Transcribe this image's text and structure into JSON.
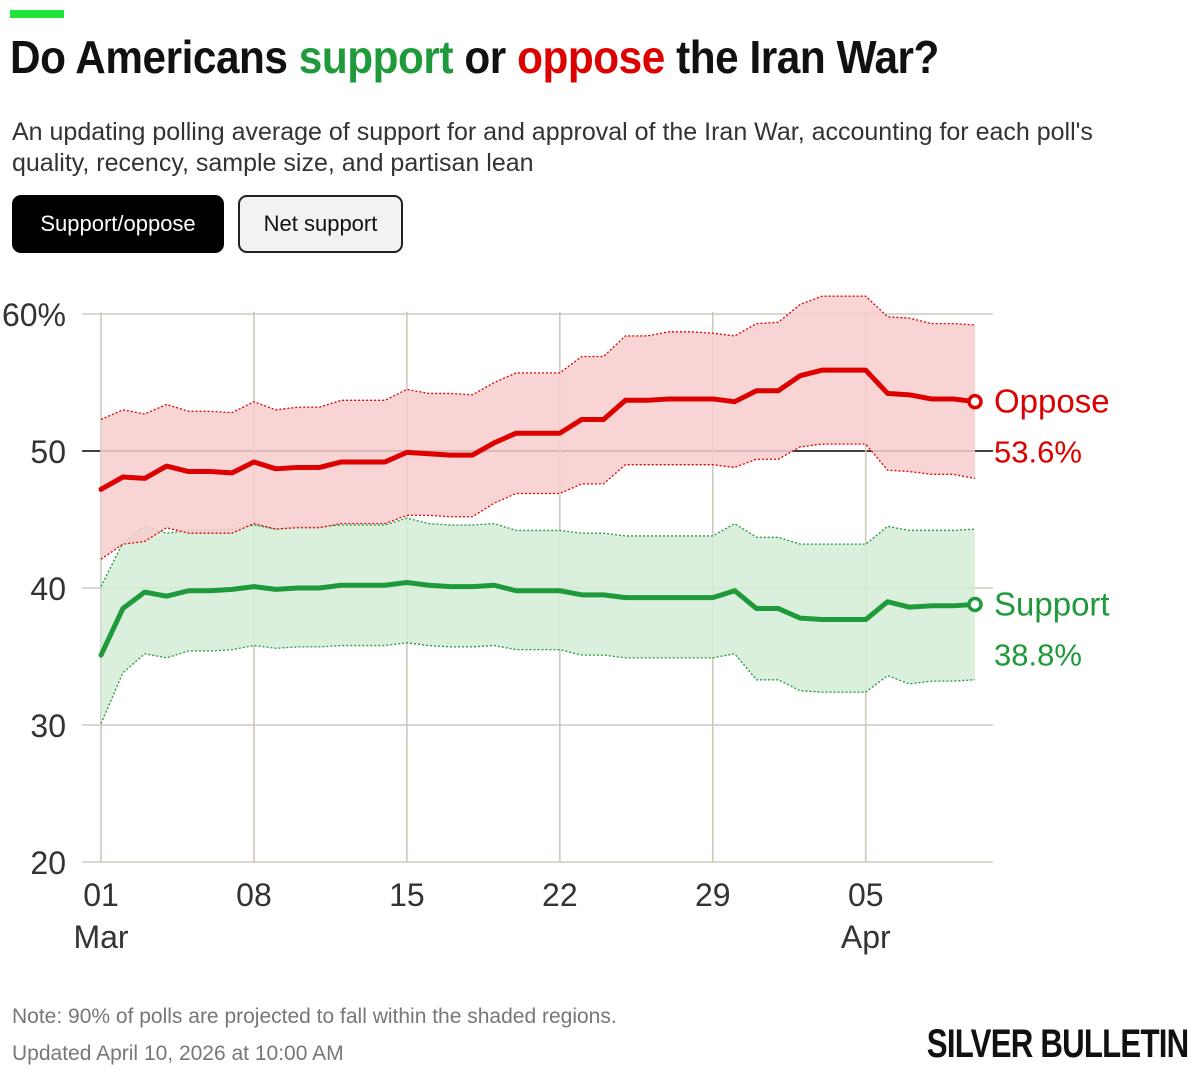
{
  "header": {
    "title_part1": "Do Americans ",
    "title_support": "support",
    "title_part2": " or ",
    "title_oppose": "oppose",
    "title_part3": " the Iran War?",
    "subtitle": "An updating polling average of support for and approval of the Iran War, accounting for each poll's quality, recency, sample size, and partisan lean"
  },
  "toggles": {
    "support_oppose": "Support/oppose",
    "net_support": "Net support"
  },
  "colors": {
    "accent": "#22e33a",
    "support": "#1f9a3b",
    "oppose": "#dd0000",
    "support_band": "#d4ecd6",
    "oppose_band": "#f7cdcd",
    "grid": "#cfc8bd"
  },
  "chart_data": {
    "type": "line",
    "title": "Do Americans support or oppose the Iran War?",
    "xlabel": "",
    "ylabel": "",
    "ylim": [
      20,
      61
    ],
    "grid": true,
    "reference_line": 50,
    "y_ticks": [
      "60%",
      "50",
      "40",
      "30",
      "20"
    ],
    "y_tick_values": [
      60,
      50,
      40,
      30,
      20
    ],
    "x_ticks": [
      {
        "day": 0,
        "label": "01",
        "sub": "Mar"
      },
      {
        "day": 7,
        "label": "08",
        "sub": ""
      },
      {
        "day": 14,
        "label": "15",
        "sub": ""
      },
      {
        "day": 21,
        "label": "22",
        "sub": ""
      },
      {
        "day": 28,
        "label": "29",
        "sub": ""
      },
      {
        "day": 35,
        "label": "05",
        "sub": "Apr"
      }
    ],
    "x": [
      0,
      1,
      2,
      3,
      4,
      5,
      6,
      7,
      8,
      9,
      10,
      11,
      12,
      13,
      14,
      15,
      16,
      17,
      18,
      19,
      20,
      21,
      22,
      23,
      24,
      25,
      26,
      27,
      28,
      29,
      30,
      31,
      32,
      33,
      34,
      35,
      36,
      37,
      38,
      39,
      40
    ],
    "series": [
      {
        "name": "Oppose",
        "label": "Oppose",
        "final_label": "53.6%",
        "values": [
          47.2,
          48.1,
          48.0,
          48.9,
          48.5,
          48.5,
          48.4,
          49.2,
          48.7,
          48.8,
          48.8,
          49.2,
          49.2,
          49.2,
          49.9,
          49.8,
          49.7,
          49.7,
          50.6,
          51.3,
          51.3,
          51.3,
          52.3,
          52.3,
          53.7,
          53.7,
          53.8,
          53.8,
          53.8,
          53.6,
          54.4,
          54.4,
          55.5,
          55.9,
          55.9,
          55.9,
          54.2,
          54.1,
          53.8,
          53.8,
          53.6
        ],
        "upper": [
          52.3,
          53.0,
          52.7,
          53.4,
          52.9,
          52.9,
          52.8,
          53.6,
          53.0,
          53.2,
          53.2,
          53.7,
          53.7,
          53.7,
          54.5,
          54.2,
          54.2,
          54.1,
          55.0,
          55.7,
          55.7,
          55.7,
          56.9,
          56.9,
          58.4,
          58.4,
          58.7,
          58.7,
          58.6,
          58.4,
          59.3,
          59.4,
          60.7,
          61.3,
          61.3,
          61.3,
          59.8,
          59.7,
          59.3,
          59.3,
          59.2
        ],
        "lower": [
          42.1,
          43.2,
          43.4,
          44.4,
          44.0,
          44.0,
          44.0,
          44.7,
          44.3,
          44.4,
          44.4,
          44.7,
          44.7,
          44.7,
          45.3,
          45.3,
          45.2,
          45.2,
          46.2,
          46.9,
          46.9,
          46.9,
          47.6,
          47.6,
          49.0,
          49.0,
          49.0,
          49.0,
          49.0,
          48.8,
          49.4,
          49.4,
          50.3,
          50.5,
          50.5,
          50.5,
          48.6,
          48.5,
          48.3,
          48.3,
          48.0
        ]
      },
      {
        "name": "Support",
        "label": "Support",
        "final_label": "38.8%",
        "values": [
          35.1,
          38.5,
          39.7,
          39.4,
          39.8,
          39.8,
          39.9,
          40.1,
          39.9,
          40.0,
          40.0,
          40.2,
          40.2,
          40.2,
          40.4,
          40.2,
          40.1,
          40.1,
          40.2,
          39.8,
          39.8,
          39.8,
          39.5,
          39.5,
          39.3,
          39.3,
          39.3,
          39.3,
          39.3,
          39.8,
          38.5,
          38.5,
          37.8,
          37.7,
          37.7,
          37.7,
          39.0,
          38.6,
          38.7,
          38.7,
          38.8
        ],
        "upper": [
          40.1,
          43.3,
          44.5,
          44.0,
          44.2,
          44.2,
          44.3,
          44.6,
          44.3,
          44.5,
          44.5,
          44.6,
          44.6,
          44.6,
          45.1,
          44.7,
          44.6,
          44.6,
          44.7,
          44.2,
          44.2,
          44.2,
          44.0,
          44.0,
          43.8,
          43.8,
          43.8,
          43.8,
          43.8,
          44.7,
          43.7,
          43.7,
          43.2,
          43.2,
          43.2,
          43.2,
          44.5,
          44.2,
          44.2,
          44.2,
          44.3
        ],
        "lower": [
          30.1,
          33.8,
          35.2,
          34.9,
          35.4,
          35.4,
          35.5,
          35.8,
          35.6,
          35.7,
          35.7,
          35.8,
          35.8,
          35.8,
          36.0,
          35.8,
          35.7,
          35.7,
          35.8,
          35.5,
          35.5,
          35.5,
          35.1,
          35.1,
          34.9,
          34.9,
          34.9,
          34.9,
          34.9,
          35.2,
          33.3,
          33.3,
          32.5,
          32.4,
          32.4,
          32.4,
          33.6,
          33.0,
          33.2,
          33.2,
          33.3
        ]
      }
    ]
  },
  "footer": {
    "note": "Note: 90% of polls are projected to fall within the shaded regions.",
    "updated": "Updated April 10, 2026 at 10:00 AM",
    "brand": "SILVER BULLETIN"
  }
}
